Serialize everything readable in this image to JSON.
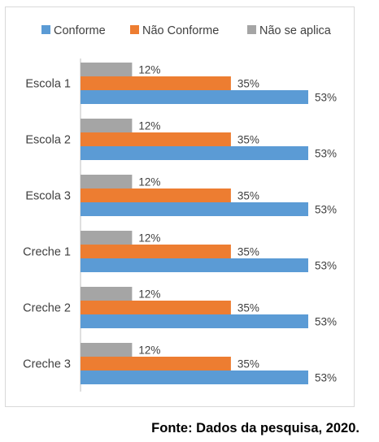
{
  "chart_data": {
    "type": "bar",
    "orientation": "horizontal",
    "categories": [
      "Escola 1",
      "Escola 2",
      "Escola 3",
      "Creche 1",
      "Creche 2",
      "Creche 3"
    ],
    "series": [
      {
        "name": "Conforme",
        "color": "#5b9bd5",
        "values": [
          53,
          53,
          53,
          53,
          53,
          53
        ],
        "labels": [
          "53%",
          "53%",
          "53%",
          "53%",
          "53%",
          "53%"
        ]
      },
      {
        "name": "Não Conforme",
        "color": "#ed7d31",
        "values": [
          35,
          35,
          35,
          35,
          35,
          35
        ],
        "labels": [
          "35%",
          "35%",
          "35%",
          "35%",
          "35%",
          "35%"
        ]
      },
      {
        "name": "Não se aplica",
        "color": "#a5a5a5",
        "values": [
          12,
          12,
          12,
          12,
          12,
          12
        ],
        "labels": [
          "12%",
          "12%",
          "12%",
          "12%",
          "12%",
          "12%"
        ]
      }
    ],
    "unit": "%",
    "legend_position": "top",
    "grid": false
  },
  "caption": "Fonte: Dados da pesquisa, 2020."
}
